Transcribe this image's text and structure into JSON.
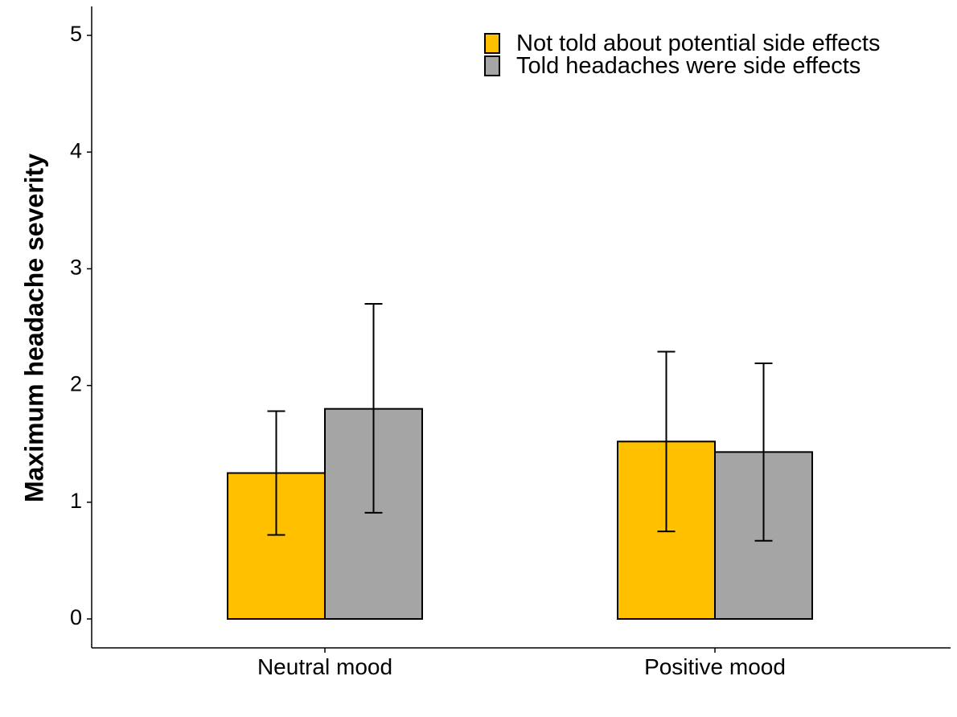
{
  "chart_data": {
    "type": "bar",
    "title": "",
    "xlabel": "",
    "ylabel": "Maximum headache severity",
    "ylim": [
      0,
      5.25
    ],
    "yticks": [
      "0",
      "1",
      "2",
      "3",
      "4",
      "5"
    ],
    "categories": [
      "Neutral mood",
      "Positive mood"
    ],
    "series": [
      {
        "name": "Not told about potential side effects",
        "color": "#FFC000",
        "values": [
          1.25,
          1.52
        ],
        "error_low": [
          0.72,
          0.75
        ],
        "error_high": [
          1.78,
          2.29
        ]
      },
      {
        "name": "Told headaches were side effects",
        "color": "#A5A5A5",
        "values": [
          1.8,
          1.43
        ],
        "error_low": [
          0.91,
          0.67
        ],
        "error_high": [
          2.7,
          2.19
        ]
      }
    ],
    "legend_position": "top-right",
    "grid": false
  }
}
